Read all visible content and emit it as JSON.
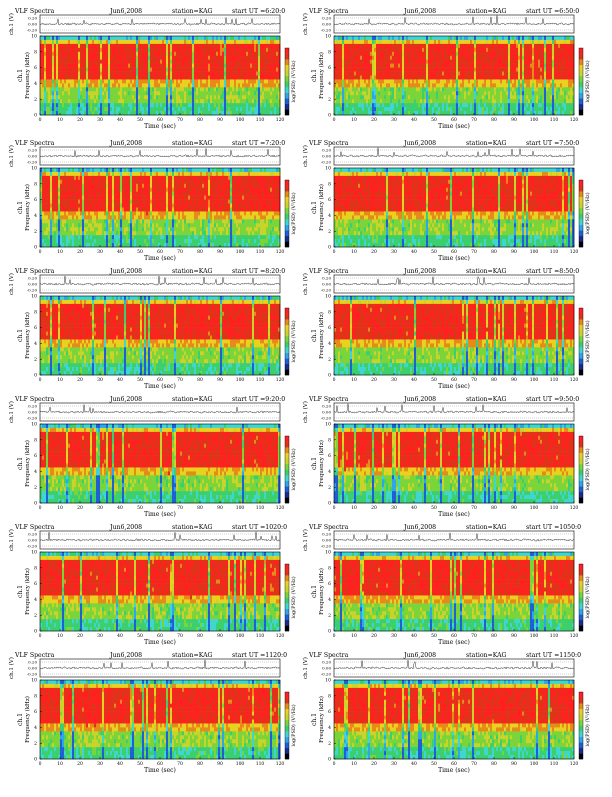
{
  "colors": {
    "scale": [
      "#000000",
      "#1a2b8c",
      "#1f5fd6",
      "#2fa6e8",
      "#3fd6cf",
      "#3ccf6e",
      "#7ad43a",
      "#c8d42a",
      "#e8d21f",
      "#e88a1a",
      "#e0331a",
      "#ff2020"
    ],
    "background": "#ffffff",
    "trace": "#000000"
  },
  "common": {
    "header_prefix": "VLF Spectra",
    "trace_ylabel": "ch.1 (V)",
    "spectrum_ylabel": "Frequency (kHz)",
    "channel_label": "ch.1",
    "xlabel": "Time (sec)",
    "colorbar_label": "log(PSD) (V²/Hz)"
  },
  "chart_data": [
    {
      "type": "heatmap",
      "title": "VLF Spectra",
      "date": "Jun6,2008",
      "station": "station=KAG",
      "start": "start UT =6:20:0",
      "trace_ticks": [
        "0.20",
        "0.00",
        "-0.20"
      ],
      "x": [
        0,
        10,
        20,
        30,
        40,
        50,
        60,
        70,
        80,
        90,
        100,
        110,
        120
      ],
      "xlim": [
        0,
        120
      ],
      "y": [
        0,
        2,
        4,
        6,
        8,
        10
      ],
      "ylim": [
        0,
        10
      ],
      "colorbar": "log(PSD)"
    },
    {
      "type": "heatmap",
      "title": "VLF Spectra",
      "date": "Jun6,2008",
      "station": "station=KAG",
      "start": "start UT =6:50:0",
      "trace_ticks": [
        "0.20",
        "0.00",
        "-0.20"
      ],
      "x": [
        0,
        10,
        20,
        30,
        40,
        50,
        60,
        70,
        80,
        90,
        100,
        110,
        120
      ],
      "xlim": [
        0,
        120
      ],
      "y": [
        0,
        2,
        4,
        6,
        8,
        10
      ],
      "ylim": [
        0,
        10
      ],
      "colorbar": "log(PSD)"
    },
    {
      "type": "heatmap",
      "title": "VLF Spectra",
      "date": "Jun6,2008",
      "station": "station=KAG",
      "start": "start UT =7:20:0",
      "trace_ticks": [
        "0.20",
        "0.00",
        "-0.20"
      ],
      "x": [
        0,
        10,
        20,
        30,
        40,
        50,
        60,
        70,
        80,
        90,
        100,
        110,
        120
      ],
      "xlim": [
        0,
        120
      ],
      "y": [
        0,
        2,
        4,
        6,
        8,
        10
      ],
      "ylim": [
        0,
        10
      ],
      "colorbar": "log(PSD)"
    },
    {
      "type": "heatmap",
      "title": "VLF Spectra",
      "date": "Jun6,2008",
      "station": "station=KAG",
      "start": "start UT =7:50:0",
      "trace_ticks": [
        "0.20",
        "0.00",
        "-0.20"
      ],
      "x": [
        0,
        10,
        20,
        30,
        40,
        50,
        60,
        70,
        80,
        90,
        100,
        110,
        120
      ],
      "xlim": [
        0,
        120
      ],
      "y": [
        0,
        2,
        4,
        6,
        8,
        10
      ],
      "ylim": [
        0,
        10
      ],
      "colorbar": "log(PSD)"
    },
    {
      "type": "heatmap",
      "title": "VLF Spectra",
      "date": "Jun6,2008",
      "station": "station=KAG",
      "start": "start UT =8:20:0",
      "trace_ticks": [
        "0.20",
        "0.00",
        "-0.20"
      ],
      "x": [
        0,
        10,
        20,
        30,
        40,
        50,
        60,
        70,
        80,
        90,
        100,
        110,
        120
      ],
      "xlim": [
        0,
        120
      ],
      "y": [
        0,
        2,
        4,
        6,
        8,
        10
      ],
      "ylim": [
        0,
        10
      ],
      "colorbar": "log(PSD)"
    },
    {
      "type": "heatmap",
      "title": "VLF Spectra",
      "date": "Jun6,2008",
      "station": "station=KAG",
      "start": "start UT =8:50:0",
      "trace_ticks": [
        "0.20",
        "0.00",
        "-0.20"
      ],
      "x": [
        0,
        10,
        20,
        30,
        40,
        50,
        60,
        70,
        80,
        90,
        100,
        110,
        120
      ],
      "xlim": [
        0,
        120
      ],
      "y": [
        0,
        2,
        4,
        6,
        8,
        10
      ],
      "ylim": [
        0,
        10
      ],
      "colorbar": "log(PSD)"
    },
    {
      "type": "heatmap",
      "title": "VLF Spectra",
      "date": "Jun6,2008",
      "station": "station=KAG",
      "start": "start UT =9:20:0",
      "trace_ticks": [
        "0.20",
        "0.00",
        "-0.20"
      ],
      "x": [
        0,
        10,
        20,
        30,
        40,
        50,
        60,
        70,
        80,
        90,
        100,
        110,
        120
      ],
      "xlim": [
        0,
        120
      ],
      "y": [
        0,
        2,
        4,
        6,
        8,
        10
      ],
      "ylim": [
        0,
        10
      ],
      "colorbar": "log(PSD)"
    },
    {
      "type": "heatmap",
      "title": "VLF Spectra",
      "date": "Jun6,2008",
      "station": "station=KAG",
      "start": "start UT =9:50:0",
      "trace_ticks": [
        "0.20",
        "0.00",
        "-0.20"
      ],
      "x": [
        0,
        10,
        20,
        30,
        40,
        50,
        60,
        70,
        80,
        90,
        100,
        110,
        120
      ],
      "xlim": [
        0,
        120
      ],
      "y": [
        0,
        2,
        4,
        6,
        8,
        10
      ],
      "ylim": [
        0,
        10
      ],
      "colorbar": "log(PSD)"
    },
    {
      "type": "heatmap",
      "title": "VLF Spectra",
      "date": "Jun6,2008",
      "station": "station=KAG",
      "start": "start UT =1020:0",
      "trace_ticks": [
        "0.20",
        "0.00",
        "-0.20"
      ],
      "x": [
        0,
        10,
        20,
        30,
        40,
        50,
        60,
        70,
        80,
        90,
        100,
        110,
        120
      ],
      "xlim": [
        0,
        120
      ],
      "y": [
        0,
        2,
        4,
        6,
        8,
        10
      ],
      "ylim": [
        0,
        10
      ],
      "colorbar": "log(PSD)"
    },
    {
      "type": "heatmap",
      "title": "VLF Spectra",
      "date": "Jun6,2008",
      "station": "station=KAG",
      "start": "start UT =1050:0",
      "trace_ticks": [
        "0.20",
        "0.00",
        "-0.20"
      ],
      "x": [
        0,
        10,
        20,
        30,
        40,
        50,
        60,
        70,
        80,
        90,
        100,
        110,
        120
      ],
      "xlim": [
        0,
        120
      ],
      "y": [
        0,
        2,
        4,
        6,
        8,
        10
      ],
      "ylim": [
        0,
        10
      ],
      "colorbar": "log(PSD)"
    },
    {
      "type": "heatmap",
      "title": "VLF Spectra",
      "date": "Jun6,2008",
      "station": "station=KAG",
      "start": "start UT =1120:0",
      "trace_ticks": [
        "0.20",
        "0.00",
        "-0.20"
      ],
      "x": [
        0,
        10,
        20,
        30,
        40,
        50,
        60,
        70,
        80,
        90,
        100,
        110,
        120
      ],
      "xlim": [
        0,
        120
      ],
      "y": [
        0,
        2,
        4,
        6,
        8,
        10
      ],
      "ylim": [
        0,
        10
      ],
      "colorbar": "log(PSD)"
    },
    {
      "type": "heatmap",
      "title": "VLF Spectra",
      "date": "Jun6,2008",
      "station": "station=KAG",
      "start": "start UT =1150:0",
      "trace_ticks": [
        "0.20",
        "0.00",
        "-0.20"
      ],
      "x": [
        0,
        10,
        20,
        30,
        40,
        50,
        60,
        70,
        80,
        90,
        100,
        110,
        120
      ],
      "xlim": [
        0,
        120
      ],
      "y": [
        0,
        2,
        4,
        6,
        8,
        10
      ],
      "ylim": [
        0,
        10
      ],
      "colorbar": "log(PSD)"
    }
  ]
}
